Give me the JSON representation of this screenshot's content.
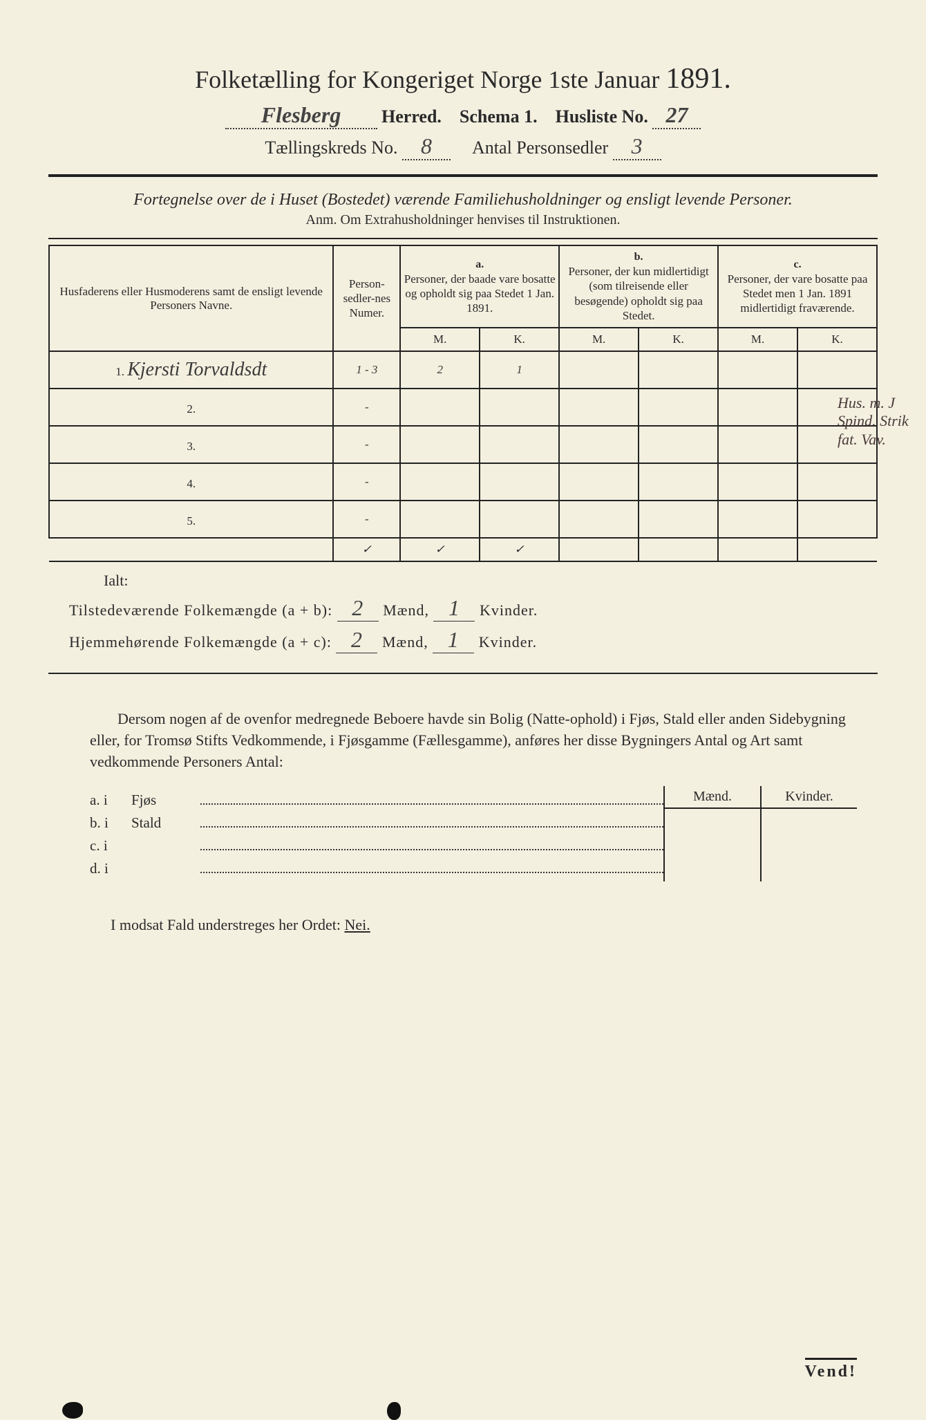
{
  "header": {
    "title_pre": "Folketælling for Kongeriget Norge 1ste Januar",
    "year": "1891.",
    "herred_value": "Flesberg",
    "herred_label": "Herred.",
    "schema_label": "Schema 1.",
    "husliste_label": "Husliste No.",
    "husliste_value": "27",
    "kreds_label": "Tællingskreds No.",
    "kreds_value": "8",
    "antal_ps_label": "Antal Personsedler",
    "antal_ps_value": "3"
  },
  "subtitle": "Fortegnelse over de i Huset (Bostedet) værende Familiehusholdninger og ensligt levende Personer.",
  "anm": "Anm.  Om Extrahusholdninger henvises til Instruktionen.",
  "table": {
    "col_names": "Husfaderens eller Husmoderens samt de ensligt levende Personers Navne.",
    "col_nr": "Person-sedler-nes Numer.",
    "group_a": "a.",
    "head_a": "Personer, der baade vare bosatte og opholdt sig paa Stedet 1 Jan. 1891.",
    "group_b": "b.",
    "head_b": "Personer, der kun midlertidigt (som tilreisende eller besøgende) opholdt sig paa Stedet.",
    "group_c": "c.",
    "head_c": "Personer, der vare bosatte paa Stedet men 1 Jan. 1891 midlertidigt fraværende.",
    "m": "M.",
    "k": "K.",
    "rows": [
      {
        "n": "1.",
        "name": "Kjersti Torvaldsdt",
        "nr": "1 - 3",
        "am": "2",
        "ak": "1",
        "bm": "",
        "bk": "",
        "cm": "",
        "ck": ""
      },
      {
        "n": "2.",
        "name": "",
        "nr": "-",
        "am": "",
        "ak": "",
        "bm": "",
        "bk": "",
        "cm": "",
        "ck": ""
      },
      {
        "n": "3.",
        "name": "",
        "nr": "-",
        "am": "",
        "ak": "",
        "bm": "",
        "bk": "",
        "cm": "",
        "ck": ""
      },
      {
        "n": "4.",
        "name": "",
        "nr": "-",
        "am": "",
        "ak": "",
        "bm": "",
        "bk": "",
        "cm": "",
        "ck": ""
      },
      {
        "n": "5.",
        "name": "",
        "nr": "-",
        "am": "",
        "ak": "",
        "bm": "",
        "bk": "",
        "cm": "",
        "ck": ""
      }
    ],
    "ticks": [
      "✓",
      "✓",
      "✓"
    ]
  },
  "summary": {
    "ialt": "Ialt:",
    "line1_label": "Tilstedeværende Folkemængde (a + b):",
    "line2_label": "Hjemmehørende Folkemængde (a + c):",
    "maend": "Mænd,",
    "kvinder": "Kvinder.",
    "l1m": "2",
    "l1k": "1",
    "l2m": "2",
    "l2k": "1"
  },
  "paragraph": "Dersom nogen af de ovenfor medregnede Beboere havde sin Bolig (Natte-ophold) i Fjøs, Stald eller anden Sidebygning eller, for Tromsø Stifts Vedkommende, i Fjøsgamme (Fællesgamme), anføres her disse Bygningers Antal og Art samt vedkommende Personers Antal:",
  "sidebyg": {
    "rows": [
      {
        "lbl": "a.  i",
        "typ": "Fjøs"
      },
      {
        "lbl": "b.  i",
        "typ": "Stald"
      },
      {
        "lbl": "c.  i",
        "typ": ""
      },
      {
        "lbl": "d.  i",
        "typ": ""
      }
    ],
    "maend": "Mænd.",
    "kvinder": "Kvinder."
  },
  "nei": {
    "pre": "I modsat Fald understreges her Ordet:",
    "word": "Nei."
  },
  "vend": "Vend!",
  "margin_note": "Hus. m. J\nSpind. Strik\nfat. Vav.",
  "colors": {
    "paper": "#f4f0e0",
    "ink": "#2a2a2a",
    "hw": "#3a3a3a"
  }
}
